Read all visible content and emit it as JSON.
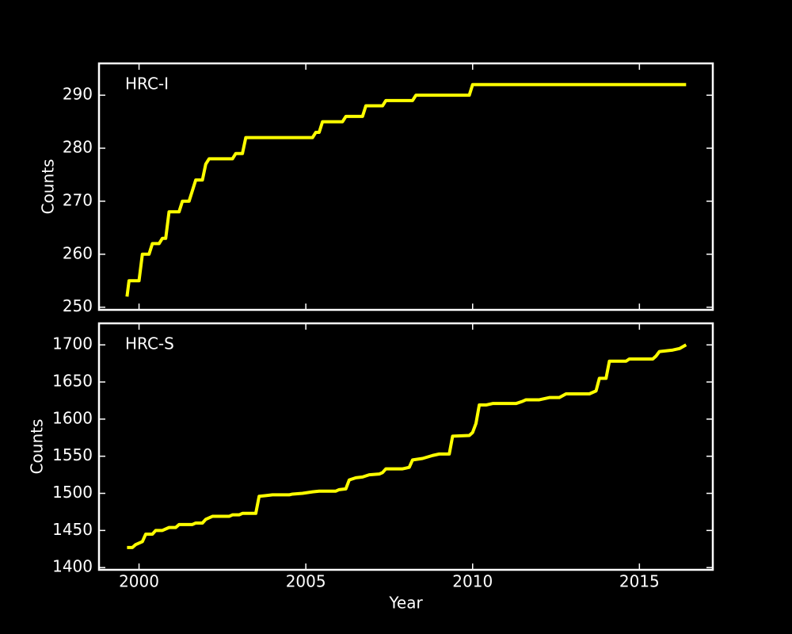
{
  "chart_data": [
    {
      "type": "line",
      "annotation": "HRC-I",
      "ylabel": "Counts",
      "color": "#ffff00",
      "xlim": [
        1998.8,
        2017.2
      ],
      "ylim": [
        249.5,
        296
      ],
      "yticks": [
        250,
        260,
        270,
        280,
        290
      ],
      "x": [
        1999.64,
        1999.7,
        2000.0,
        2000.1,
        2000.3,
        2000.4,
        2000.6,
        2000.7,
        2000.8,
        2000.9,
        2001.2,
        2001.3,
        2001.5,
        2001.7,
        2001.9,
        2002.0,
        2002.1,
        2002.8,
        2002.9,
        2003.1,
        2003.2,
        2005.2,
        2005.3,
        2005.4,
        2005.5,
        2006.1,
        2006.2,
        2006.7,
        2006.8,
        2007.3,
        2007.4,
        2008.2,
        2008.3,
        2009.9,
        2010.0,
        2016.4
      ],
      "values": [
        252,
        255,
        255,
        260,
        260,
        262,
        262,
        263,
        263,
        268,
        268,
        270,
        270,
        274,
        274,
        277,
        278,
        278,
        279,
        279,
        282,
        282,
        283,
        283,
        285,
        285,
        286,
        286,
        288,
        288,
        289,
        289,
        290,
        290,
        292,
        292
      ]
    },
    {
      "type": "line",
      "annotation": "HRC-S",
      "ylabel": "Counts",
      "xlabel": "Year",
      "color": "#ffff00",
      "xlim": [
        1998.8,
        2017.2
      ],
      "ylim": [
        1397,
        1729
      ],
      "yticks": [
        1400,
        1450,
        1500,
        1550,
        1600,
        1650,
        1700
      ],
      "xticks": [
        2000,
        2005,
        2010,
        2015
      ],
      "x": [
        1999.64,
        1999.8,
        1999.9,
        2000.1,
        2000.2,
        2000.4,
        2000.5,
        2000.7,
        2000.9,
        2001.1,
        2001.2,
        2001.6,
        2001.7,
        2001.9,
        2002.0,
        2002.2,
        2002.7,
        2002.8,
        2003.0,
        2003.1,
        2003.5,
        2003.6,
        2003.8,
        2004.0,
        2004.5,
        2004.6,
        2004.9,
        2005.2,
        2005.4,
        2005.9,
        2006.0,
        2006.2,
        2006.3,
        2006.5,
        2006.7,
        2006.9,
        2007.2,
        2007.3,
        2007.4,
        2007.9,
        2008.0,
        2008.1,
        2008.2,
        2008.5,
        2008.8,
        2009.0,
        2009.3,
        2009.4,
        2009.9,
        2010.0,
        2010.1,
        2010.2,
        2010.4,
        2010.6,
        2011.3,
        2011.5,
        2011.6,
        2012.0,
        2012.3,
        2012.6,
        2012.8,
        2013.5,
        2013.6,
        2013.7,
        2013.8,
        2014.0,
        2014.1,
        2014.6,
        2014.7,
        2015.4,
        2015.5,
        2015.6,
        2016.0,
        2016.2,
        2016.4
      ],
      "values": [
        1427,
        1427,
        1431,
        1435,
        1445,
        1445,
        1450,
        1450,
        1454,
        1454,
        1458,
        1458,
        1460,
        1460,
        1465,
        1469,
        1469,
        1471,
        1471,
        1473,
        1473,
        1496,
        1497,
        1498,
        1498,
        1499,
        1500,
        1502,
        1503,
        1503,
        1505,
        1506,
        1518,
        1521,
        1522,
        1525,
        1526,
        1528,
        1533,
        1533,
        1534,
        1535,
        1545,
        1547,
        1551,
        1553,
        1553,
        1577,
        1578,
        1582,
        1594,
        1619,
        1619,
        1621,
        1621,
        1624,
        1626,
        1626,
        1629,
        1629,
        1634,
        1634,
        1636,
        1638,
        1655,
        1655,
        1678,
        1678,
        1681,
        1681,
        1685,
        1691,
        1693,
        1695,
        1700
      ]
    }
  ]
}
